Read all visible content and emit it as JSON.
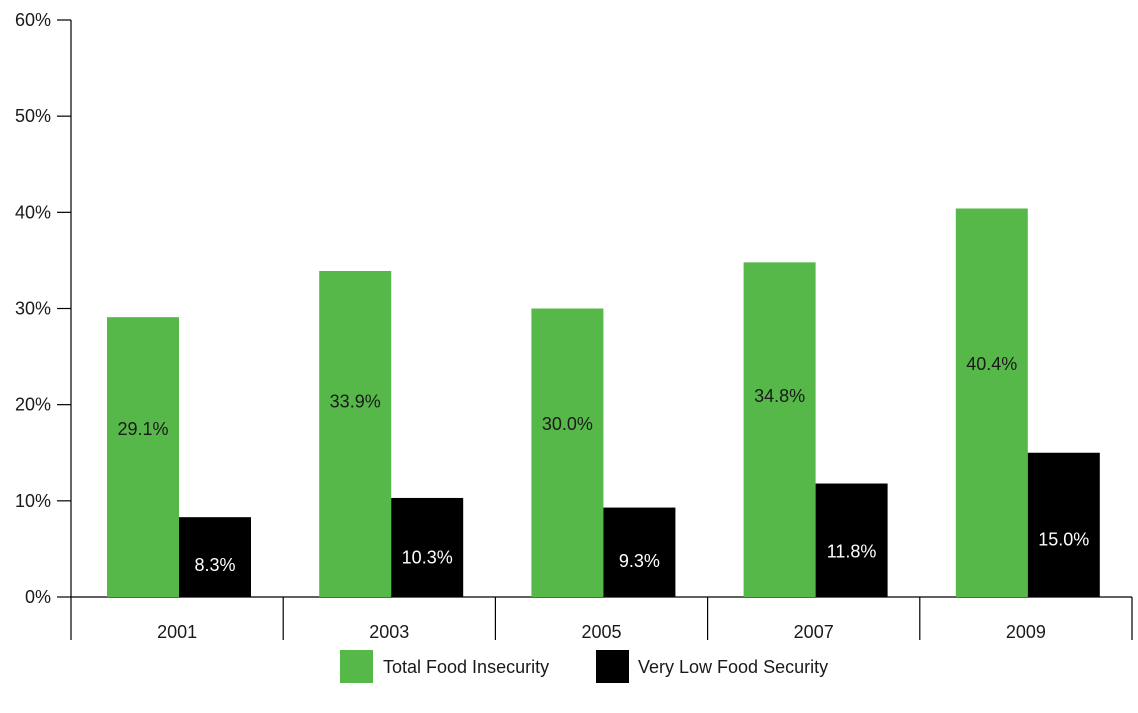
{
  "chart_data": {
    "type": "bar",
    "categories": [
      "2001",
      "2003",
      "2005",
      "2007",
      "2009"
    ],
    "series": [
      {
        "name": "Total Food Insecurity",
        "values": [
          29.1,
          33.9,
          30.0,
          34.8,
          40.4
        ],
        "labels": [
          "29.1%",
          "33.9%",
          "30.0%",
          "34.8%",
          "40.4%"
        ],
        "color": "#57b84a",
        "label_color": "#1a1a1a"
      },
      {
        "name": "Very Low Food Security",
        "values": [
          8.3,
          10.3,
          9.3,
          11.8,
          15.0
        ],
        "labels": [
          "8.3%",
          "10.3%",
          "9.3%",
          "11.8%",
          "15.0%"
        ],
        "color": "#000000",
        "label_color": "#ffffff"
      }
    ],
    "y_ticks": [
      {
        "value": 0,
        "label": "0%"
      },
      {
        "value": 10,
        "label": "10%"
      },
      {
        "value": 20,
        "label": "20%"
      },
      {
        "value": 30,
        "label": "30%"
      },
      {
        "value": 40,
        "label": "40%"
      },
      {
        "value": 50,
        "label": "50%"
      },
      {
        "value": 60,
        "label": "60%"
      }
    ],
    "ylim": [
      0,
      60
    ],
    "grid": false,
    "legend_position": "bottom-center",
    "title": "",
    "xlabel": "",
    "ylabel": ""
  }
}
